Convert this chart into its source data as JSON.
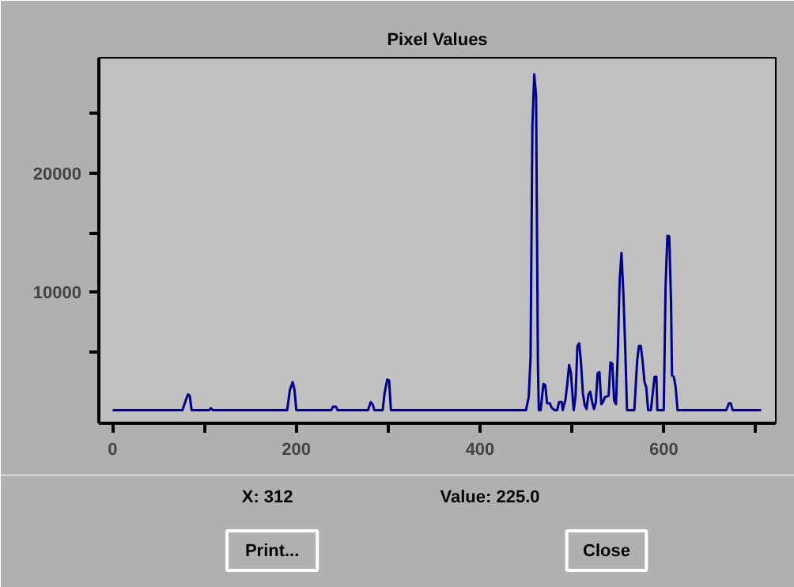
{
  "chart_data": {
    "type": "line",
    "title": "Pixel Values",
    "x": [
      0,
      76,
      79,
      82,
      84,
      86,
      105,
      107,
      109,
      190,
      193,
      196,
      198,
      200,
      238,
      240,
      243,
      245,
      278,
      281,
      283,
      285,
      294,
      296,
      299,
      301,
      303,
      450,
      453,
      455,
      457,
      459,
      461,
      463,
      464,
      466,
      469,
      471,
      473,
      476,
      478,
      481,
      484,
      486,
      489,
      490,
      493,
      495,
      497,
      499,
      501,
      502,
      504,
      506,
      508,
      510,
      512,
      514,
      516,
      518,
      520,
      522,
      524,
      526,
      528,
      530,
      532,
      534,
      536,
      540,
      542,
      544,
      546,
      548,
      550,
      552,
      554,
      556,
      558,
      560,
      568,
      571,
      573,
      575,
      577,
      579,
      581,
      583,
      586,
      588,
      590,
      592,
      593,
      600,
      602,
      604,
      606,
      608,
      609,
      611,
      613,
      615,
      668,
      671,
      673,
      675,
      706
    ],
    "series": [
      {
        "color": "#00008b",
        "values": [
          100,
          100,
          800,
          1430,
          1300,
          100,
          100,
          270,
          100,
          100,
          1800,
          2450,
          1800,
          100,
          100,
          400,
          400,
          100,
          100,
          770,
          600,
          100,
          100,
          1500,
          2670,
          2600,
          100,
          100,
          1200,
          4500,
          24000,
          28300,
          26500,
          4000,
          100,
          100,
          2300,
          2200,
          670,
          670,
          300,
          100,
          100,
          770,
          770,
          100,
          1000,
          2300,
          3900,
          3200,
          1000,
          100,
          1300,
          5500,
          5700,
          4000,
          1500,
          500,
          200,
          1400,
          1650,
          800,
          200,
          700,
          3200,
          3300,
          600,
          800,
          1200,
          1300,
          4100,
          4000,
          900,
          600,
          5000,
          11000,
          13300,
          10000,
          5500,
          100,
          100,
          4200,
          5500,
          5500,
          4200,
          2500,
          2000,
          100,
          100,
          1500,
          2900,
          2900,
          100,
          100,
          10500,
          14750,
          14700,
          9000,
          3000,
          2900,
          2000,
          100,
          100,
          670,
          670,
          100,
          100
        ]
      }
    ],
    "xlim": [
      -15,
      722
    ],
    "ylim": [
      -1000,
      29700
    ],
    "xticks": [
      0,
      {
        "value": 100,
        "label": null
      },
      200,
      {
        "value": 300,
        "label": null
      },
      400,
      {
        "value": 500,
        "label": null
      },
      600,
      {
        "value": 700,
        "label": null
      }
    ],
    "yticks": [
      {
        "value": 5000,
        "label": null
      },
      10000,
      {
        "value": 15000,
        "label": null
      },
      20000,
      {
        "value": 25000,
        "label": null
      }
    ],
    "grid": false,
    "marker": "none",
    "line_style": "solid",
    "annotations": [
      "X: 312",
      "Value: 225.0",
      "Print...",
      "Close"
    ]
  }
}
